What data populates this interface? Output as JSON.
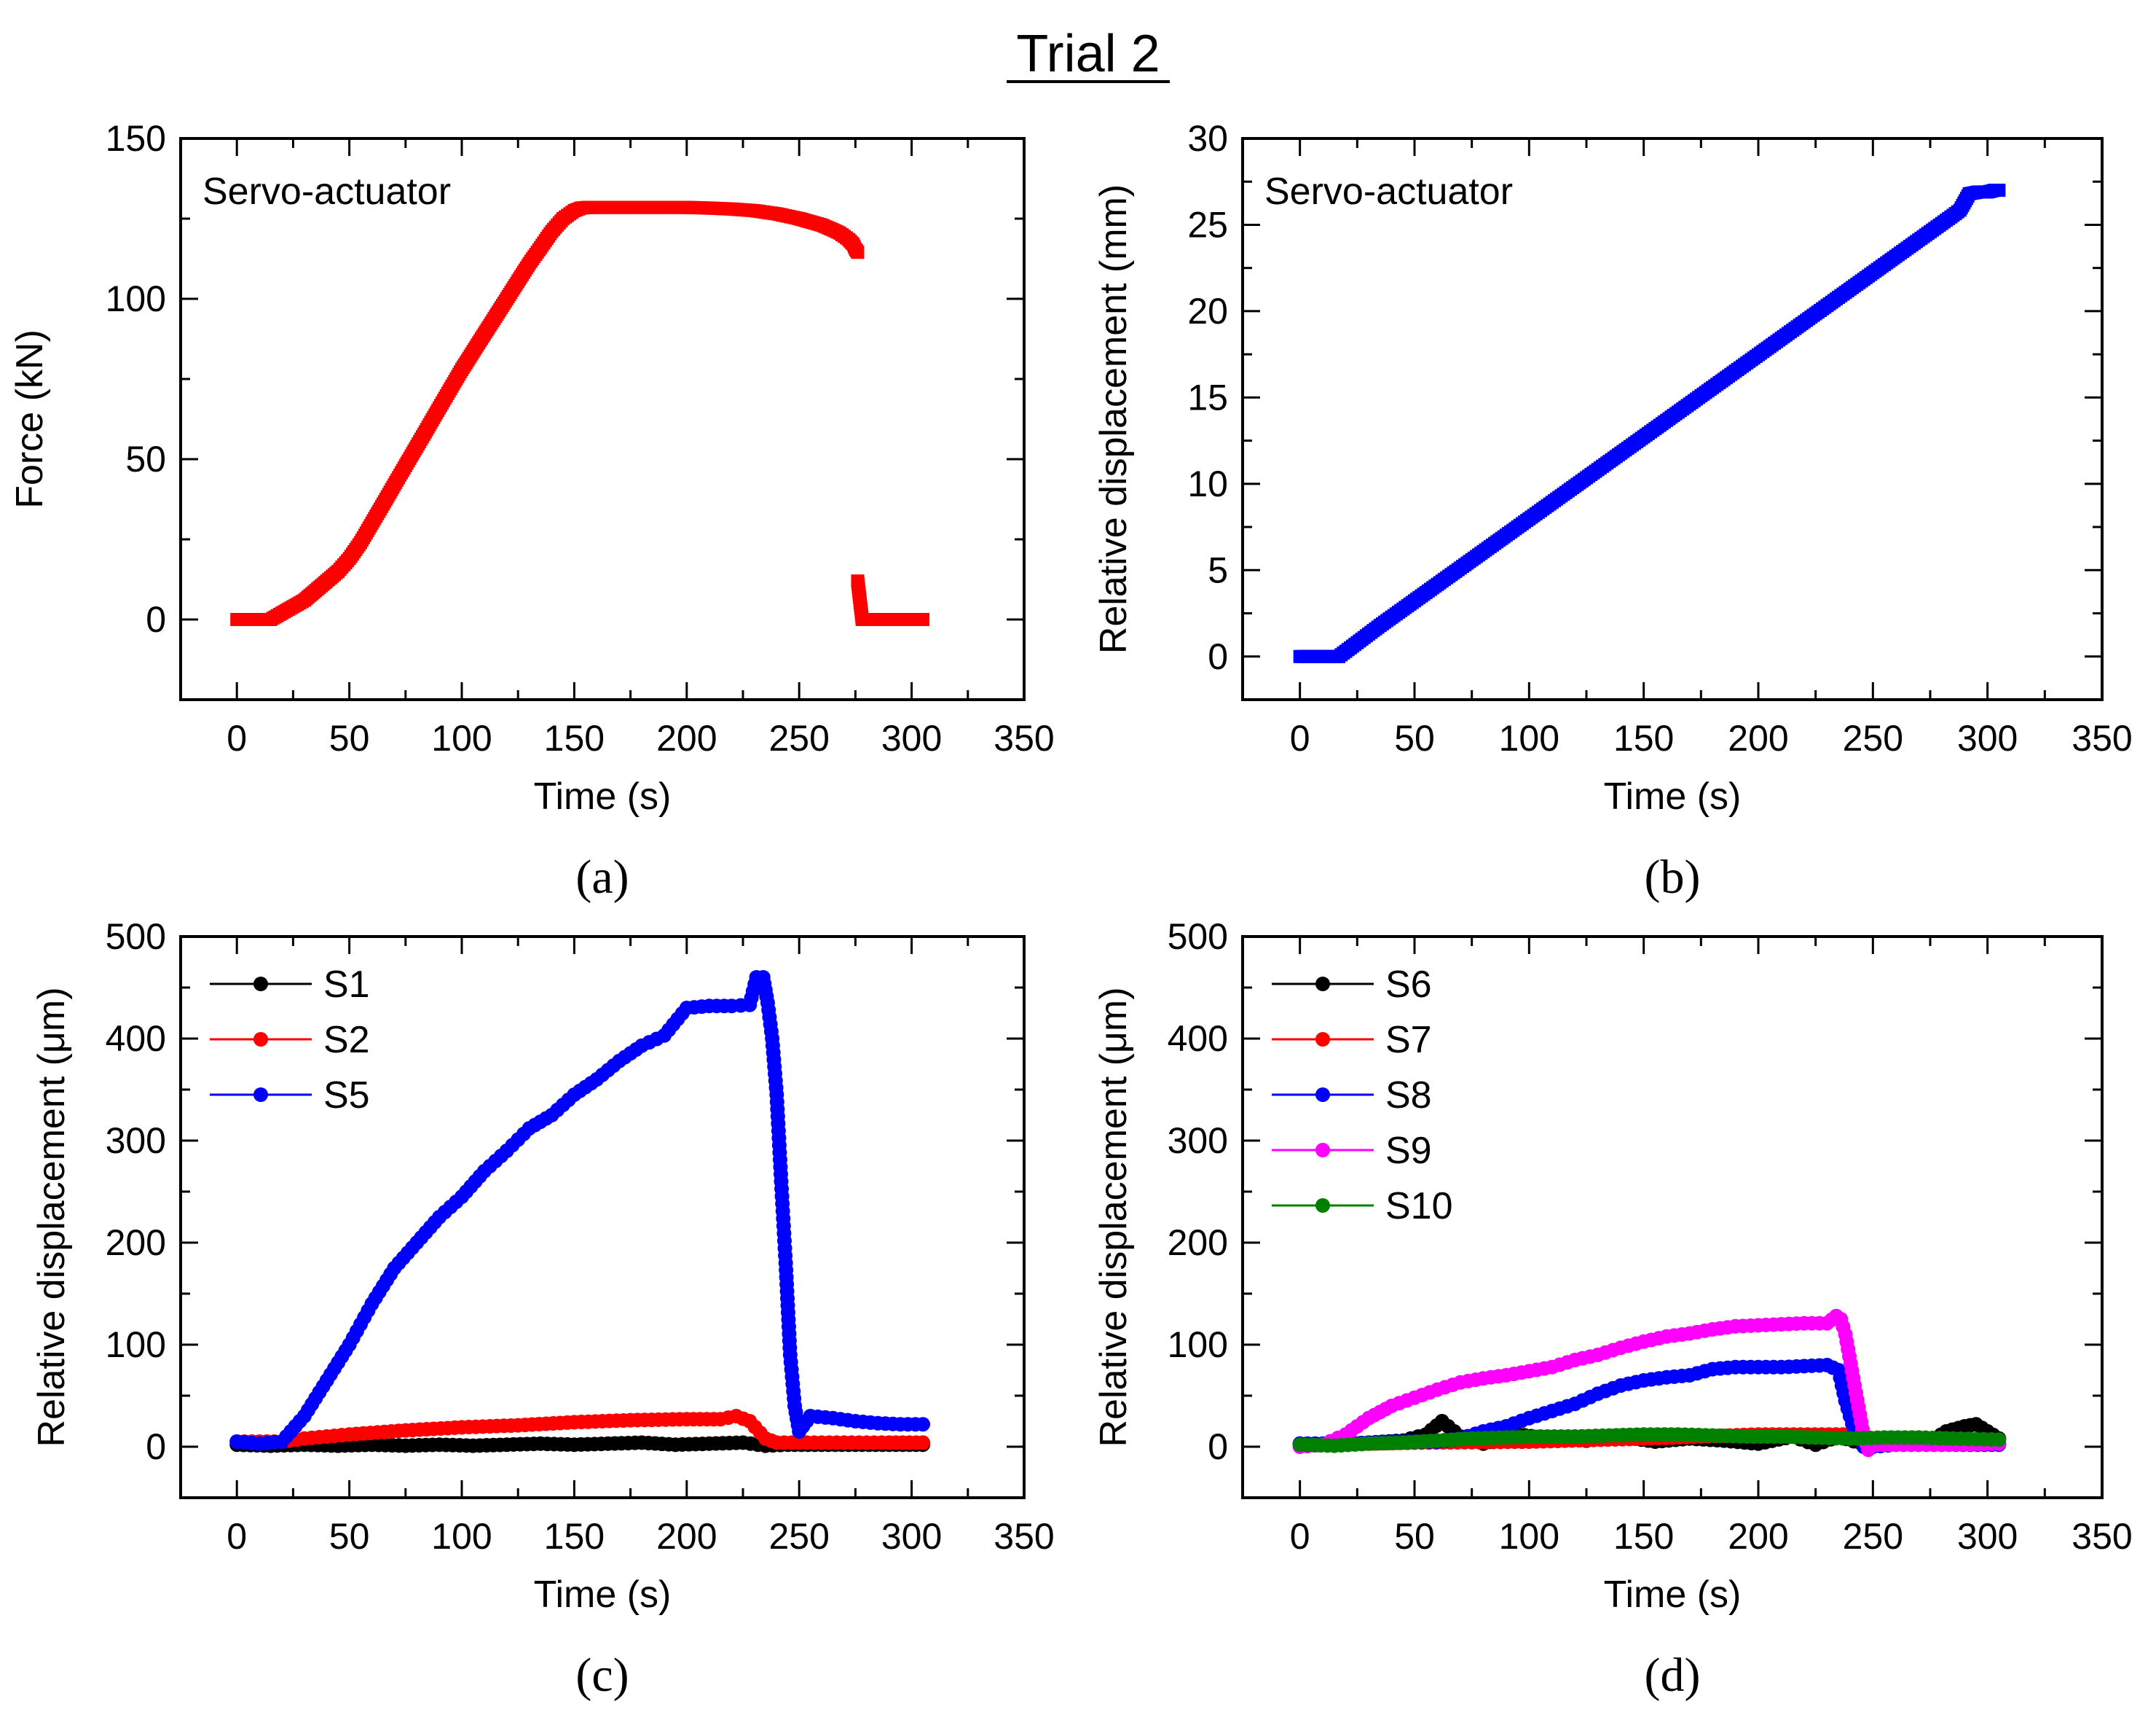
{
  "figure_title": "Trial 2",
  "chart_data": [
    {
      "panel": "(a)",
      "type": "scatter",
      "annotation": "Servo-actuator",
      "xlabel": "Time (s)",
      "ylabel": "Force (kN)",
      "xlim": [
        -25,
        350
      ],
      "ylim": [
        -25,
        150
      ],
      "xticks": [
        "0",
        "50",
        "100",
        "150",
        "200",
        "250",
        "300",
        "350"
      ],
      "yticks": [
        "0",
        "50",
        "100",
        "150"
      ],
      "series": [
        {
          "name": "Force",
          "color": "#ff0000",
          "marker": "square",
          "x": [
            0,
            5,
            10,
            15,
            20,
            25,
            30,
            35,
            40,
            45,
            50,
            55,
            60,
            65,
            70,
            75,
            80,
            85,
            90,
            95,
            100,
            105,
            110,
            115,
            120,
            125,
            130,
            135,
            140,
            145,
            150,
            153,
            156,
            160,
            170,
            180,
            190,
            200,
            210,
            220,
            230,
            240,
            250,
            255,
            260,
            265,
            268,
            270,
            272,
            274,
            275,
            276,
            276,
            278,
            281,
            284,
            287,
            290,
            293,
            296,
            299,
            302,
            305
          ],
          "y": [
            0,
            0,
            0,
            0,
            2,
            4,
            6,
            9,
            12,
            15,
            19,
            24,
            30,
            36,
            42,
            48,
            54,
            60,
            66,
            72,
            78,
            83.5,
            89,
            94.5,
            100,
            105.5,
            111,
            116,
            121,
            125,
            127.5,
            128.3,
            128.5,
            128.5,
            128.5,
            128.5,
            128.5,
            128.5,
            128.3,
            128,
            127.5,
            126.5,
            125,
            124,
            123,
            121.5,
            120.5,
            119.5,
            118.5,
            117,
            115.5,
            114.5,
            12,
            0,
            0,
            0,
            0,
            0,
            0,
            0,
            0,
            0,
            0
          ]
        }
      ]
    },
    {
      "panel": "(b)",
      "type": "scatter",
      "annotation": "Servo-actuator",
      "xlabel": "Time (s)",
      "ylabel": "Relative displacement (mm)",
      "xlim": [
        -25,
        350
      ],
      "ylim": [
        -2.5,
        30
      ],
      "xticks": [
        "0",
        "50",
        "100",
        "150",
        "200",
        "250",
        "300",
        "350"
      ],
      "yticks": [
        "0",
        "5",
        "10",
        "15",
        "20",
        "25",
        "30"
      ],
      "series": [
        {
          "name": "Displacement",
          "color": "#0000ff",
          "marker": "square",
          "x": [
            0,
            5,
            10,
            15,
            17,
            25,
            35,
            45,
            55,
            65,
            75,
            85,
            95,
            105,
            115,
            125,
            135,
            145,
            155,
            165,
            175,
            185,
            195,
            205,
            215,
            225,
            235,
            245,
            255,
            265,
            275,
            285,
            288,
            292,
            296,
            300,
            303,
            305
          ],
          "y": [
            0,
            0,
            0,
            0,
            0,
            0.8,
            1.8,
            2.75,
            3.7,
            4.65,
            5.6,
            6.55,
            7.5,
            8.45,
            9.4,
            10.35,
            11.3,
            12.25,
            13.2,
            14.15,
            15.1,
            16.05,
            17,
            17.95,
            18.9,
            19.85,
            20.8,
            21.75,
            22.7,
            23.65,
            24.6,
            25.55,
            25.85,
            26.8,
            26.9,
            26.9,
            27,
            27
          ]
        }
      ]
    },
    {
      "panel": "(c)",
      "type": "line",
      "xlabel": "Time (s)",
      "ylabel": "Relative displacement (μm)",
      "xlim": [
        -25,
        350
      ],
      "ylim": [
        -50,
        500
      ],
      "xticks": [
        "0",
        "50",
        "100",
        "150",
        "200",
        "250",
        "300",
        "350"
      ],
      "yticks": [
        "0",
        "100",
        "200",
        "300",
        "400",
        "500"
      ],
      "legend_position": "top-left",
      "series": [
        {
          "name": "S1",
          "color": "#000000",
          "x": [
            0,
            15,
            30,
            45,
            60,
            75,
            90,
            105,
            120,
            135,
            150,
            165,
            180,
            195,
            210,
            225,
            235,
            245,
            260,
            275,
            290,
            305
          ],
          "y": [
            2,
            1,
            2,
            1,
            2,
            1,
            2,
            1,
            2,
            3,
            2,
            3,
            4,
            2,
            3,
            4,
            1,
            2,
            2,
            2,
            2,
            2
          ]
        },
        {
          "name": "S2",
          "color": "#ff0000",
          "x": [
            0,
            20,
            30,
            50,
            75,
            100,
            125,
            150,
            175,
            200,
            215,
            222,
            228,
            235,
            240,
            250,
            270,
            290,
            305
          ],
          "y": [
            5,
            5,
            8,
            12,
            16,
            19,
            21,
            24,
            26,
            27,
            27,
            30,
            25,
            8,
            4,
            4,
            4,
            4,
            4
          ]
        },
        {
          "name": "S5",
          "color": "#0000ff",
          "x": [
            0,
            10,
            20,
            30,
            40,
            50,
            60,
            70,
            80,
            90,
            100,
            110,
            120,
            130,
            140,
            150,
            160,
            170,
            180,
            190,
            200,
            210,
            220,
            228,
            231,
            234,
            236,
            238,
            240,
            242,
            244,
            246,
            248,
            250,
            255,
            265,
            275,
            285,
            295,
            305
          ],
          "y": [
            5,
            3,
            5,
            30,
            65,
            100,
            140,
            175,
            200,
            225,
            245,
            270,
            290,
            312,
            325,
            345,
            360,
            378,
            393,
            403,
            430,
            432,
            432,
            433,
            460,
            460,
            435,
            400,
            345,
            260,
            180,
            90,
            40,
            15,
            30,
            28,
            25,
            23,
            22,
            22
          ]
        }
      ]
    },
    {
      "panel": "(d)",
      "type": "line",
      "xlabel": "Time (s)",
      "ylabel": "Relative displacement (μm)",
      "xlim": [
        -25,
        350
      ],
      "ylim": [
        -50,
        500
      ],
      "xticks": [
        "0",
        "50",
        "100",
        "150",
        "200",
        "250",
        "300",
        "350"
      ],
      "yticks": [
        "0",
        "100",
        "200",
        "300",
        "400",
        "500"
      ],
      "legend_position": "top-left",
      "series": [
        {
          "name": "S6",
          "color": "#000000",
          "x": [
            0,
            15,
            30,
            45,
            55,
            62,
            70,
            80,
            95,
            110,
            125,
            140,
            155,
            170,
            185,
            200,
            215,
            225,
            235,
            245,
            260,
            275,
            282,
            290,
            295,
            300,
            305
          ],
          "y": [
            3,
            2,
            4,
            6,
            12,
            25,
            10,
            3,
            12,
            8,
            6,
            10,
            5,
            8,
            6,
            3,
            10,
            2,
            10,
            3,
            7,
            5,
            15,
            20,
            22,
            15,
            8
          ]
        },
        {
          "name": "S7",
          "color": "#ff0000",
          "x": [
            0,
            50,
            100,
            150,
            200,
            240,
            250,
            275,
            305
          ],
          "y": [
            2,
            4,
            5,
            8,
            12,
            12,
            3,
            3,
            3
          ]
        },
        {
          "name": "S8",
          "color": "#0000ff",
          "x": [
            0,
            20,
            40,
            60,
            70,
            80,
            90,
            100,
            110,
            120,
            130,
            140,
            150,
            160,
            170,
            180,
            190,
            200,
            210,
            220,
            230,
            235,
            238,
            242,
            246,
            250,
            260,
            280,
            305
          ],
          "y": [
            3,
            3,
            5,
            5,
            8,
            15,
            20,
            28,
            35,
            42,
            52,
            60,
            65,
            68,
            70,
            76,
            78,
            78,
            78,
            79,
            80,
            75,
            45,
            15,
            0,
            0,
            2,
            2,
            2
          ]
        },
        {
          "name": "S9",
          "color": "#ff00ff",
          "x": [
            0,
            10,
            20,
            30,
            40,
            50,
            60,
            70,
            80,
            90,
            100,
            110,
            120,
            130,
            140,
            150,
            160,
            170,
            180,
            190,
            200,
            210,
            220,
            230,
            234,
            236,
            238,
            242,
            246,
            248,
            252,
            260,
            280,
            305
          ],
          "y": [
            0,
            2,
            12,
            28,
            40,
            48,
            56,
            63,
            67,
            70,
            74,
            78,
            85,
            90,
            97,
            103,
            108,
            111,
            115,
            118,
            119,
            120,
            121,
            121,
            128,
            125,
            110,
            60,
            10,
            -3,
            2,
            2,
            2,
            3
          ]
        },
        {
          "name": "S10",
          "color": "#008000",
          "x": [
            0,
            15,
            30,
            45,
            60,
            75,
            90,
            105,
            120,
            135,
            150,
            165,
            180,
            195,
            210,
            225,
            240,
            255,
            270,
            285,
            305
          ],
          "y": [
            2,
            1,
            3,
            4,
            6,
            8,
            9,
            10,
            10,
            11,
            12,
            12,
            11,
            10,
            10,
            9,
            8,
            9,
            9,
            8,
            7
          ]
        }
      ]
    }
  ]
}
